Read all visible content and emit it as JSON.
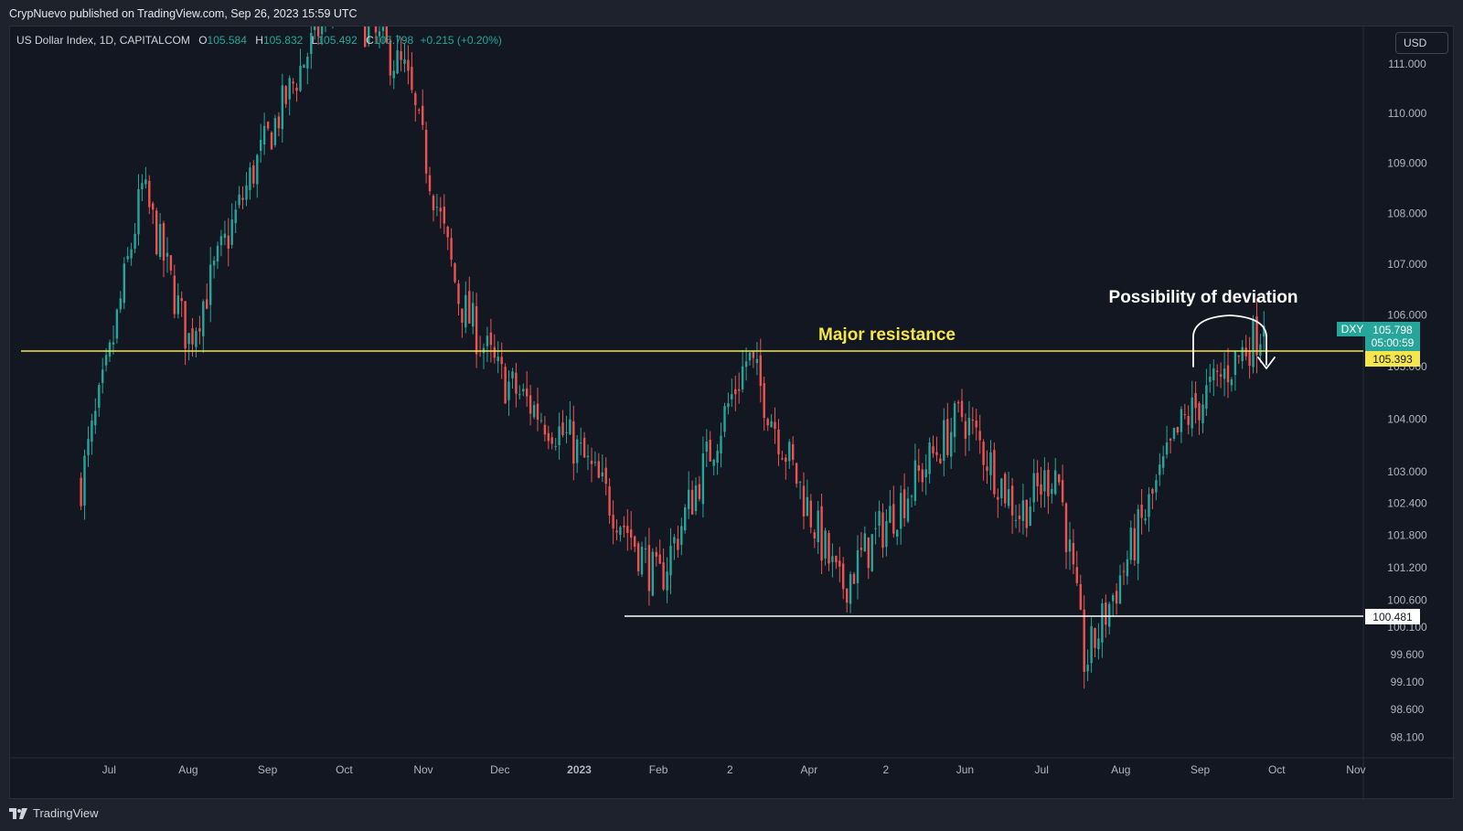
{
  "header": {
    "publish_text": "CrypNuevo published on TradingView.com, Sep 26, 2023 15:59 UTC"
  },
  "legend": {
    "symbol_text": "US Dollar Index, 1D, CAPITALCOM",
    "open_label": "O",
    "open": "105.584",
    "high_label": "H",
    "high": "105.832",
    "low_label": "L",
    "low": "105.492",
    "close_label": "C",
    "close": "105.798",
    "change": "+0.215 (+0.20%)"
  },
  "currency_button": "USD",
  "footer": {
    "brand": "TradingView"
  },
  "colors": {
    "up": "#26a69a",
    "down": "#ef5350",
    "resistance": "#f5e64b",
    "support": "#ffffff",
    "background": "#131722",
    "text": "#b2b5be"
  },
  "annotations": {
    "resistance_label": "Major resistance",
    "deviation_label": "Possibility of deviation"
  },
  "price_badges": {
    "last": {
      "symbol": "DXY",
      "price": "105.798",
      "countdown": "05:00:59"
    },
    "resistance_price": "105.393",
    "support_price": "100.481"
  },
  "chart_data": {
    "type": "candlestick",
    "title": "US Dollar Index, 1D, CAPITALCOM",
    "x_axis": {
      "tick_labels": [
        "Jul",
        "Aug",
        "Sep",
        "Oct",
        "Nov",
        "Dec",
        "2023",
        "Feb",
        "2",
        "Apr",
        "2",
        "Jun",
        "Jul",
        "Aug",
        "Sep",
        "Oct",
        "Nov"
      ],
      "range": [
        "2022-06",
        "2023-11"
      ]
    },
    "y_axis": {
      "scale": "log",
      "tick_values": [
        111.0,
        110.0,
        109.0,
        108.0,
        107.0,
        106.0,
        105.0,
        104.0,
        103.0,
        102.4,
        101.8,
        101.2,
        100.6,
        100.1,
        99.6,
        99.1,
        98.6,
        98.1
      ],
      "tick_labels": [
        "111.000",
        "110.000",
        "109.000",
        "108.000",
        "107.000",
        "106.000",
        "105.000",
        "104.000",
        "103.000",
        "102.400",
        "101.800",
        "101.200",
        "100.600",
        "100.100",
        "99.600",
        "99.100",
        "98.600",
        "98.100"
      ],
      "range": [
        97.9,
        111.8
      ]
    },
    "levels": [
      {
        "label": "Major resistance",
        "price": 105.393,
        "from": "2022-06",
        "to": "2023-10"
      },
      {
        "price": 100.481,
        "from": "2023-02",
        "to": "2023-10"
      }
    ],
    "path_waypoints": [
      {
        "date": "2022-06-20",
        "close": 102.8
      },
      {
        "date": "2022-07-01",
        "close": 105.1
      },
      {
        "date": "2022-07-14",
        "close": 108.5
      },
      {
        "date": "2022-08-01",
        "close": 105.5
      },
      {
        "date": "2022-08-26",
        "close": 108.8
      },
      {
        "date": "2022-09-28",
        "close": 112.5
      },
      {
        "date": "2022-10-25",
        "close": 110.8
      },
      {
        "date": "2022-11-15",
        "close": 106.3
      },
      {
        "date": "2022-12-01",
        "close": 104.8
      },
      {
        "date": "2022-12-30",
        "close": 103.5
      },
      {
        "date": "2023-01-20",
        "close": 101.9
      },
      {
        "date": "2023-02-01",
        "close": 100.9
      },
      {
        "date": "2023-03-08",
        "close": 105.2
      },
      {
        "date": "2023-04-13",
        "close": 100.8
      },
      {
        "date": "2023-05-31",
        "close": 104.1
      },
      {
        "date": "2023-06-22",
        "close": 102.2
      },
      {
        "date": "2023-07-07",
        "close": 103.1
      },
      {
        "date": "2023-07-18",
        "close": 99.4
      },
      {
        "date": "2023-08-25",
        "close": 103.9
      },
      {
        "date": "2023-09-26",
        "close": 105.798
      }
    ]
  }
}
